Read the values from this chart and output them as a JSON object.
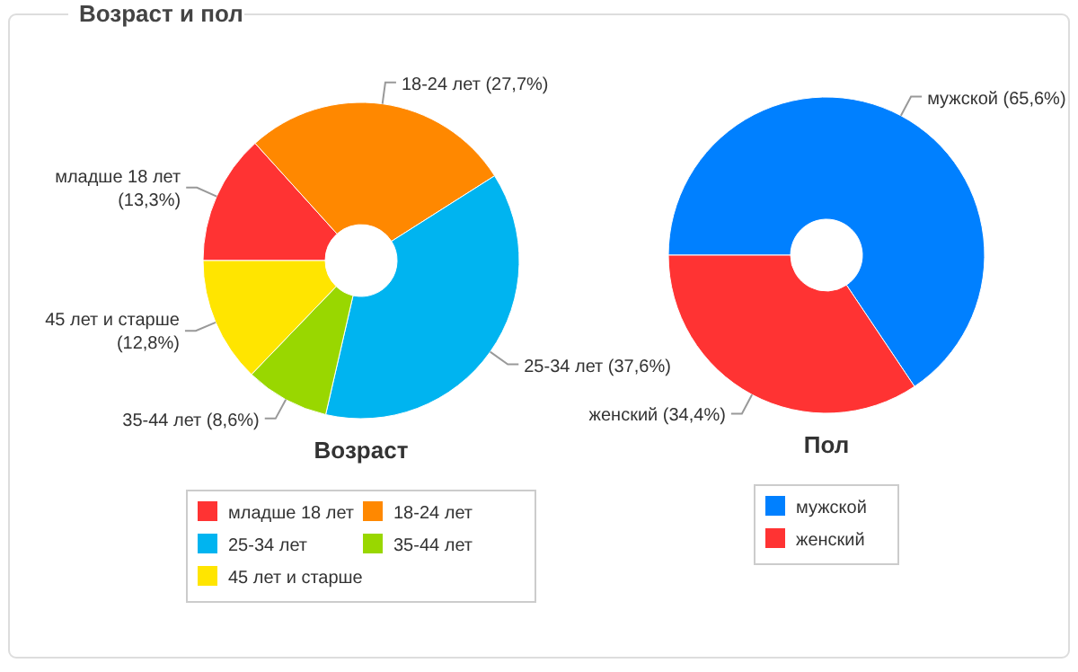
{
  "chart_data": [
    {
      "type": "other",
      "title": "Возраст и пол"
    },
    {
      "type": "donut",
      "title": "Возраст",
      "categories": [
        "младше 18 лет",
        "18-24 лет",
        "25-34 лет",
        "35-44 лет",
        "45 лет и старше"
      ],
      "values": [
        13.3,
        27.7,
        37.6,
        8.6,
        12.8
      ],
      "value_labels": [
        "(13,3%)",
        "(27,7%)",
        "(37,6%)",
        "(8,6%)",
        "(12,8%)"
      ],
      "colors": [
        "#ff3333",
        "#ff8800",
        "#00b4f0",
        "#99d700",
        "#ffe500"
      ],
      "legend": "bottom"
    },
    {
      "type": "donut",
      "title": "Пол",
      "categories": [
        "мужской",
        "женский"
      ],
      "values": [
        65.6,
        34.4
      ],
      "value_labels": [
        "(65,6%)",
        "(34,4%)"
      ],
      "colors": [
        "#0080ff",
        "#ff3333"
      ],
      "legend": "bottom"
    }
  ]
}
